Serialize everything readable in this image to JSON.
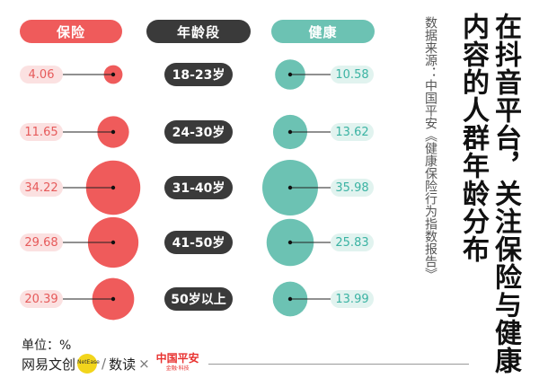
{
  "title": "在抖音平台，关注保险与健康内容的人群年龄分布",
  "source": "数据来源：中国平安《健康保险行为指数报告》",
  "unit": "单位：%",
  "headers": {
    "insurance": "保险",
    "age": "年龄段",
    "health": "健康"
  },
  "colors": {
    "insurance": "#ef5b5b",
    "insurance_light": "#fbe1e1",
    "health": "#6cc2b3",
    "health_light": "#e1f3ef",
    "age": "#3a3a3a"
  },
  "footer": {
    "brand1": "网易文创",
    "badge": "NetEase",
    "brand2": "数读",
    "times": "×",
    "brand3": "中国平安",
    "brand3_sub": "金融·科技"
  },
  "chart_data": {
    "type": "bubble",
    "categories": [
      "18-23岁",
      "24-30岁",
      "31-40岁",
      "41-50岁",
      "50岁以上"
    ],
    "series": [
      {
        "name": "保险",
        "values": [
          4.06,
          11.65,
          34.22,
          29.68,
          20.39
        ]
      },
      {
        "name": "健康",
        "values": [
          10.58,
          13.62,
          35.98,
          25.83,
          13.99
        ]
      }
    ],
    "labels": {
      "insurance": [
        "4.06",
        "11.65",
        "34.22",
        "29.68",
        "20.39"
      ],
      "health": [
        "10.58",
        "13.62",
        "35.98",
        "25.83",
        "13.99"
      ]
    }
  }
}
